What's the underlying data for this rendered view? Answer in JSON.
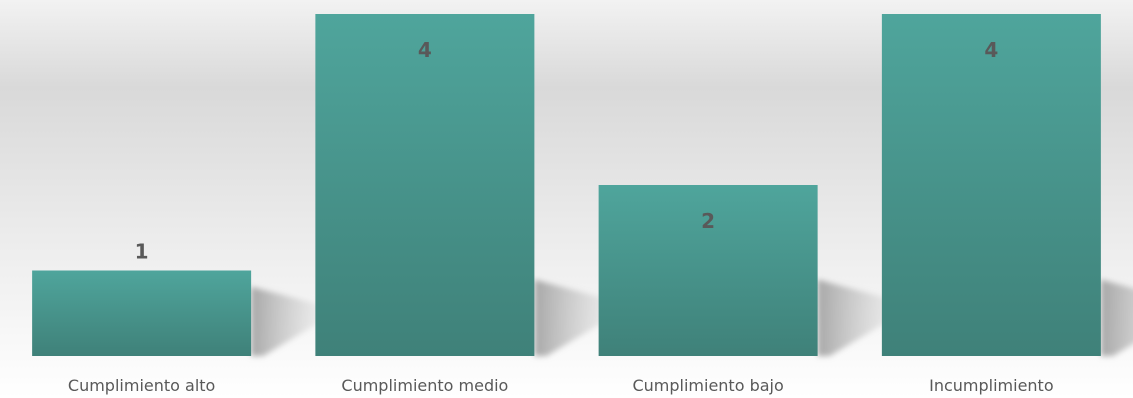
{
  "chart_data": {
    "type": "bar",
    "title": "",
    "xlabel": "",
    "ylabel": "",
    "categories": [
      "Cumplimiento alto",
      "Cumplimiento medio",
      "Cumplimiento bajo",
      "Incumplimiento"
    ],
    "values": [
      1,
      4,
      2,
      4
    ],
    "data_labels": [
      "1",
      "4",
      "2",
      "4"
    ],
    "ylim": [
      0,
      4
    ],
    "grid": false,
    "legend": "none",
    "colors": {
      "bar_top": "#4FA59C",
      "bar_bottom": "#3F8179",
      "label_text": "#595959",
      "background_top": "#D6D6D6",
      "background_bottom": "#FFFFFF",
      "shadow": "#A6A6A6"
    }
  }
}
